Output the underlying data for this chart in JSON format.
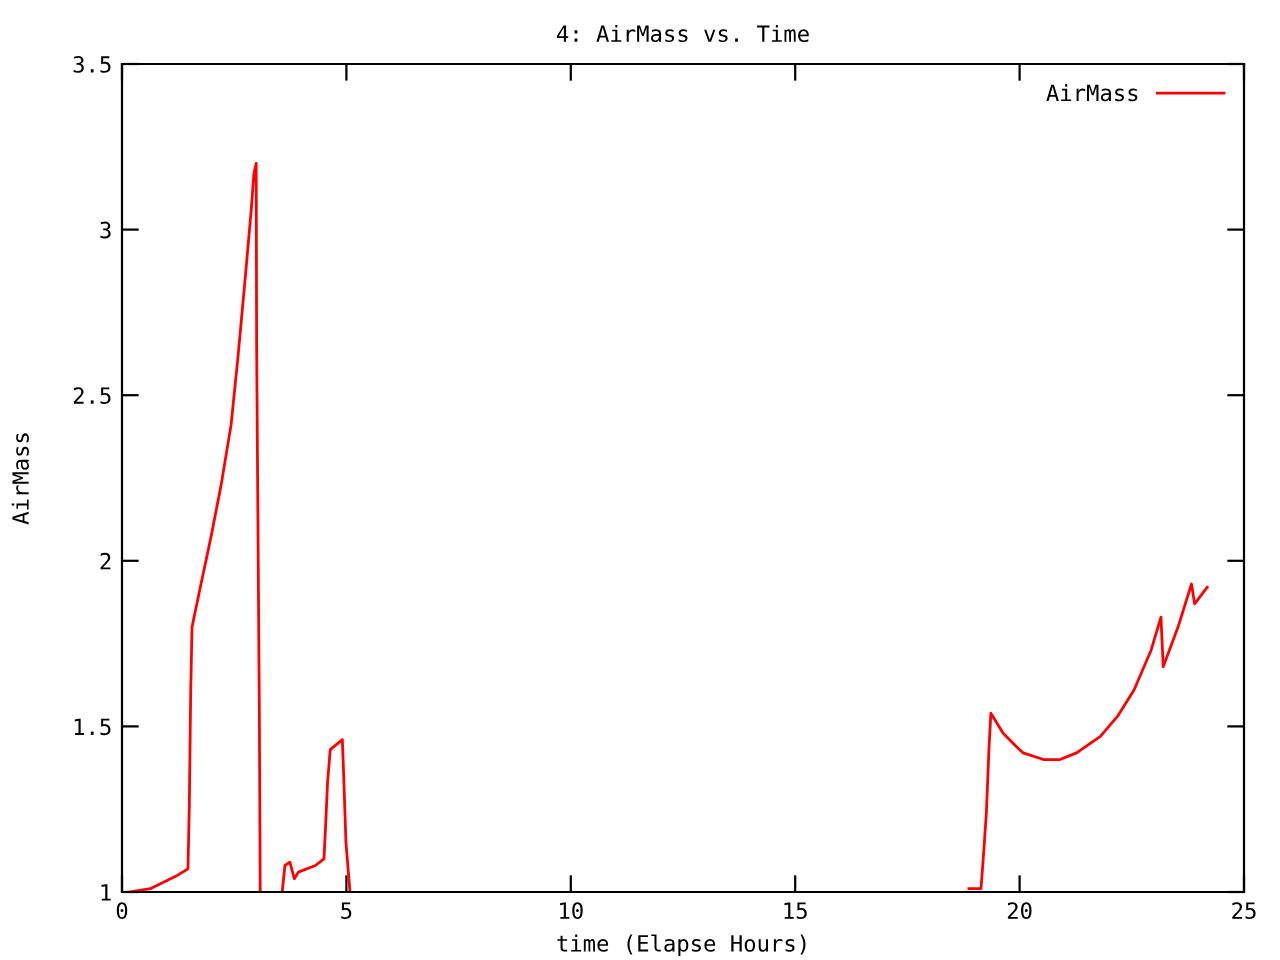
{
  "chart_data": {
    "type": "line",
    "title": "4: AirMass vs. Time",
    "xlabel": "time (Elapse Hours)",
    "ylabel": "AirMass",
    "xlim": [
      0,
      25
    ],
    "xticks": [
      0,
      5,
      10,
      15,
      20,
      25
    ],
    "ylim": [
      1,
      3.5
    ],
    "yticks": [
      1,
      1.5,
      2,
      2.5,
      3,
      3.5
    ],
    "grid": false,
    "legend": "top right",
    "marker": "none",
    "line_style": "solid",
    "x": [
      0.15,
      0.63,
      1.23,
      1.47,
      1.5,
      1.53,
      1.56,
      1.76,
      1.98,
      2.21,
      2.43,
      2.58,
      2.73,
      2.88,
      2.94,
      2.99,
      3.0,
      3.06,
      3.08,
      3.3,
      3.57,
      3.63,
      3.74,
      3.84,
      3.93,
      4.31,
      4.5,
      4.53,
      4.58,
      4.64,
      4.91,
      4.94,
      4.99,
      5.08,
      12,
      18.87,
      19.14,
      19.2,
      19.26,
      19.32,
      19.36,
      19.63,
      19.92,
      20.08,
      20.53,
      20.9,
      21.27,
      21.8,
      22.18,
      22.55,
      22.93,
      23.15,
      23.2,
      23.53,
      23.83,
      23.9,
      24.18
    ],
    "series": [
      {
        "name": "AirMass",
        "color": "#ff0000",
        "values": [
          1.0,
          1.01,
          1.05,
          1.07,
          1.26,
          1.6,
          1.8,
          1.93,
          2.07,
          2.23,
          2.41,
          2.61,
          2.83,
          3.06,
          3.17,
          3.2,
          2.65,
          1.55,
          1.0,
          null,
          1.0,
          1.08,
          1.09,
          1.04,
          1.06,
          1.08,
          1.1,
          1.18,
          1.33,
          1.43,
          1.46,
          1.35,
          1.15,
          1.0,
          null,
          1.01,
          1.01,
          1.12,
          1.24,
          1.44,
          1.54,
          1.48,
          1.44,
          1.42,
          1.4,
          1.4,
          1.42,
          1.47,
          1.53,
          1.61,
          1.73,
          1.83,
          1.68,
          1.8,
          1.93,
          1.87,
          1.92
        ]
      }
    ]
  }
}
